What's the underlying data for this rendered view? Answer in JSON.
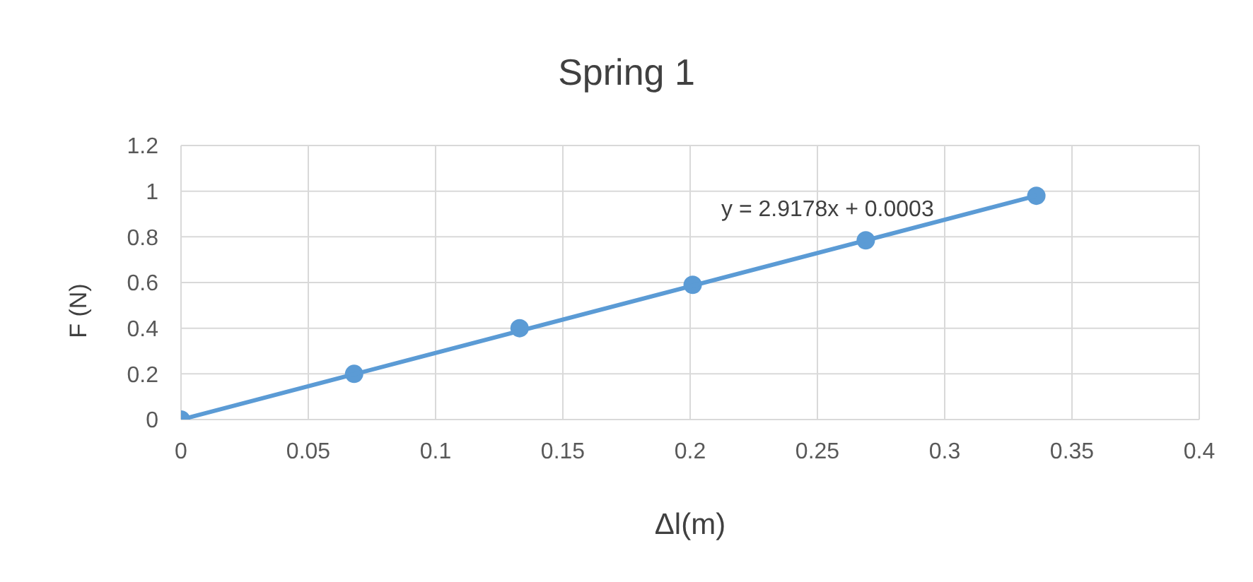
{
  "chart_data": {
    "type": "scatter",
    "title": "Spring 1",
    "xlabel": "Δl(m)",
    "ylabel": "F (N)",
    "series": [
      {
        "marker": "circle",
        "color": "#5b9bd5",
        "x": [
          0,
          0.068,
          0.133,
          0.201,
          0.269,
          0.336
        ],
        "values": [
          0,
          0.2,
          0.4,
          0.59,
          0.785,
          0.98
        ]
      },
      {
        "type": "line",
        "marker": "none",
        "color": "#5b9bd5",
        "x": [
          0,
          0.336
        ],
        "values": [
          0,
          0.98
        ]
      }
    ],
    "annotations": [
      "y = 2.9178x + 0.0003"
    ],
    "xlim": [
      0,
      0.4
    ],
    "xticks": [
      0,
      0.05,
      0.1,
      0.15,
      0.2,
      0.25,
      0.3,
      0.35,
      0.4
    ],
    "ylim": [
      0,
      1.2
    ],
    "yticks": [
      0,
      0.2,
      0.4,
      0.6,
      0.8,
      1,
      1.2
    ],
    "grid": true,
    "legend": false
  }
}
